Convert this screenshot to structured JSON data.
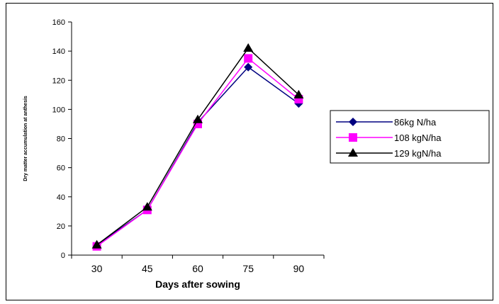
{
  "chart_data": {
    "type": "line",
    "title": "",
    "xlabel": "Days after sowing",
    "ylabel": "Dry matter accumulation at anthesis",
    "x": [
      30,
      45,
      60,
      75,
      90
    ],
    "ylim": [
      0,
      160
    ],
    "yticks": [
      0,
      20,
      40,
      60,
      80,
      100,
      120,
      140,
      160
    ],
    "grid": false,
    "legend_position": "right",
    "series": [
      {
        "name": "86kg N/ha",
        "values": [
          7,
          31,
          91,
          129,
          104
        ],
        "color": "#000080",
        "marker": "diamond"
      },
      {
        "name": "108 kgN/ha",
        "values": [
          6,
          31,
          90,
          135,
          107
        ],
        "color": "#ff00ff",
        "marker": "square"
      },
      {
        "name": "129 kgN/ha",
        "values": [
          7,
          33,
          93,
          142,
          110
        ],
        "color": "#000000",
        "marker": "triangle"
      }
    ]
  }
}
